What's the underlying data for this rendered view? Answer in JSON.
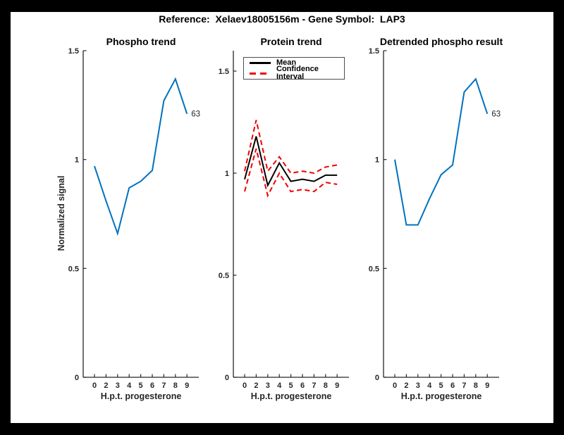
{
  "figure_title": "Reference:  Xelaev18005156m - Gene Symbol:  LAP3",
  "chart_data": [
    {
      "type": "line",
      "title": "Phospho trend",
      "xlabel": "H.p.t. progesterone",
      "ylabel": "Normalized signal",
      "x_tick_labels": [
        "0",
        "2",
        "3",
        "4",
        "5",
        "6",
        "7",
        "8",
        "9"
      ],
      "y_ticks": [
        0,
        0.5,
        1,
        1.5
      ],
      "y_tick_labels": [
        "0",
        "0.5",
        "1",
        "1.5"
      ],
      "ylim": [
        0,
        1.5
      ],
      "grid": false,
      "series": [
        {
          "name": "phospho-trend",
          "color": "#0072BD",
          "dash": false,
          "values": [
            0.97,
            0.81,
            0.66,
            0.87,
            0.9,
            0.95,
            1.27,
            1.37,
            1.21
          ],
          "end_label": "63"
        }
      ]
    },
    {
      "type": "line",
      "title": "Protein trend",
      "xlabel": "H.p.t. progesterone",
      "ylabel": "",
      "x_tick_labels": [
        "0",
        "2",
        "3",
        "4",
        "5",
        "6",
        "7",
        "8",
        "9"
      ],
      "y_ticks": [
        0,
        0.5,
        1,
        1.5
      ],
      "y_tick_labels": [
        "0",
        "0.5",
        "1",
        "1.5"
      ],
      "ylim": [
        0,
        1.6
      ],
      "grid": false,
      "legend": {
        "position": "top-left",
        "entries": [
          {
            "label": "Mean",
            "color": "#000000",
            "style": "solid"
          },
          {
            "label": "Confidence Interval",
            "color": "#F00000",
            "style": "dashed"
          }
        ]
      },
      "series": [
        {
          "name": "mean",
          "color": "#000000",
          "dash": false,
          "values": [
            0.97,
            1.18,
            0.94,
            1.05,
            0.96,
            0.97,
            0.96,
            0.99,
            0.99
          ]
        },
        {
          "name": "ci-upper",
          "color": "#F00000",
          "dash": true,
          "values": [
            1.01,
            1.26,
            1.01,
            1.08,
            1.0,
            1.01,
            1.0,
            1.03,
            1.04
          ]
        },
        {
          "name": "ci-lower",
          "color": "#F00000",
          "dash": true,
          "values": [
            0.91,
            1.12,
            0.89,
            1.0,
            0.91,
            0.92,
            0.91,
            0.955,
            0.945
          ]
        }
      ]
    },
    {
      "type": "line",
      "title": "Detrended phospho result",
      "xlabel": "H.p.t. progesterone",
      "ylabel": "",
      "x_tick_labels": [
        "0",
        "2",
        "3",
        "4",
        "5",
        "6",
        "7",
        "8",
        "9"
      ],
      "y_ticks": [
        0,
        0.5,
        1,
        1.5
      ],
      "y_tick_labels": [
        "0",
        "0.5",
        "1",
        "1.5"
      ],
      "ylim": [
        0,
        1.5
      ],
      "grid": false,
      "series": [
        {
          "name": "detrended-phospho",
          "color": "#0072BD",
          "dash": false,
          "values": [
            1.0,
            0.7,
            0.7,
            0.82,
            0.93,
            0.975,
            1.31,
            1.37,
            1.21
          ],
          "end_label": "63"
        }
      ]
    }
  ]
}
